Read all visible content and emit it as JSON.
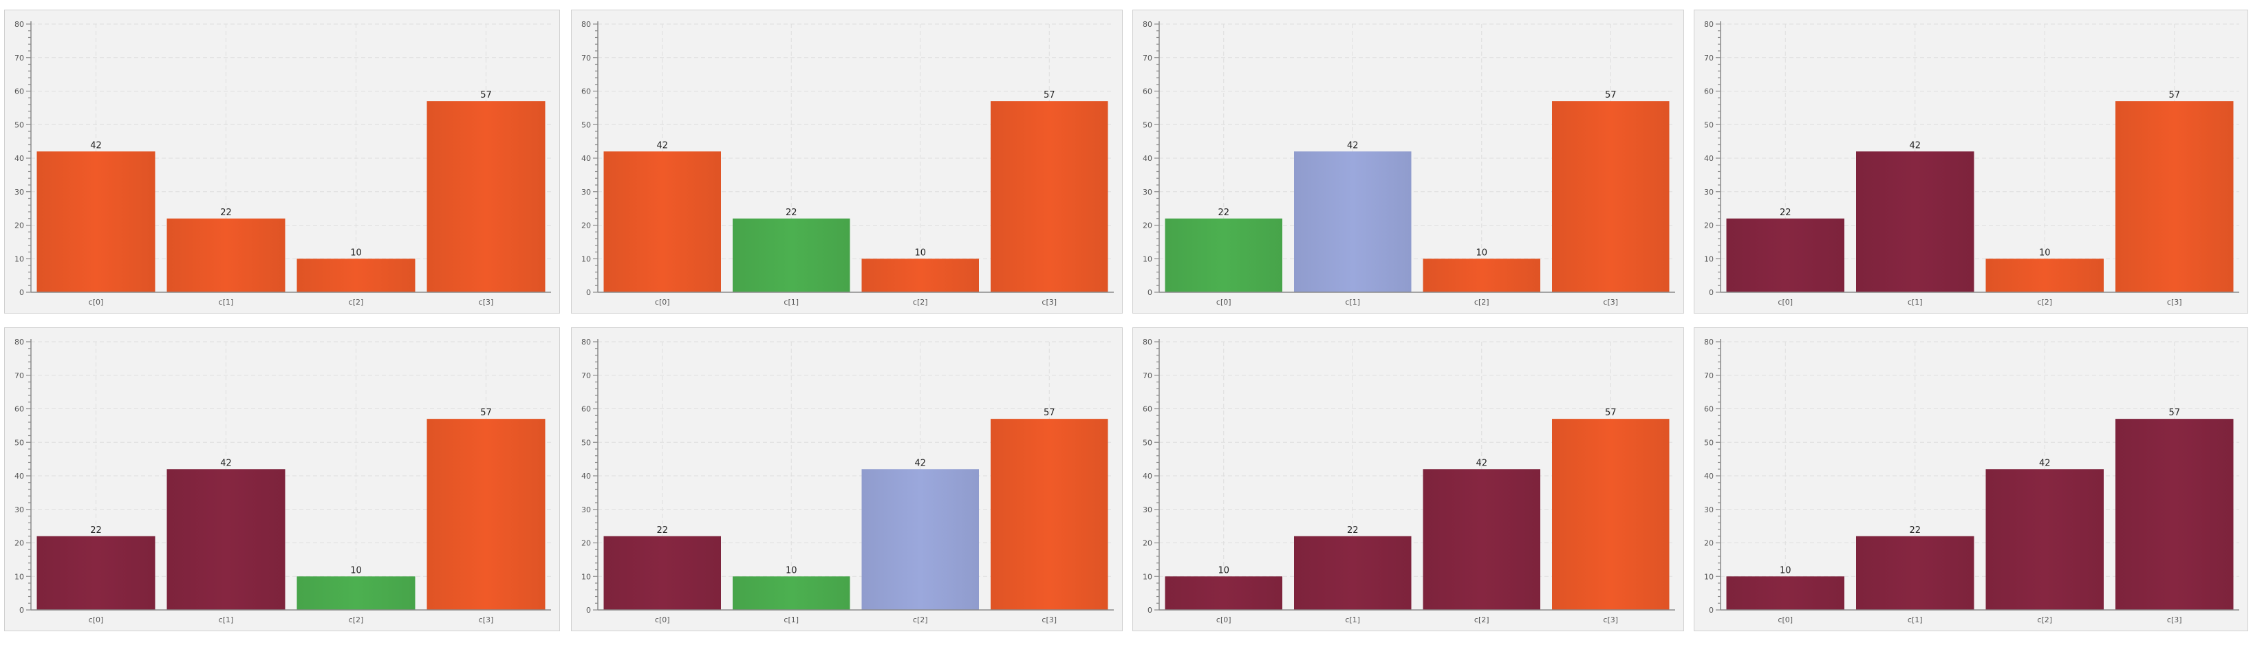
{
  "colors": {
    "orange": "#f05a28",
    "green": "#4cb050",
    "lavender": "#9ba8dc",
    "maroon": "#862641"
  },
  "chart_data": [
    {
      "type": "bar",
      "categories": [
        "c[0]",
        "c[1]",
        "c[2]",
        "c[3]"
      ],
      "values": [
        42,
        22,
        10,
        57
      ],
      "bar_colors": [
        "orange",
        "orange",
        "orange",
        "orange"
      ],
      "ylim": [
        0,
        80
      ],
      "yticks": [
        0,
        10,
        20,
        30,
        40,
        50,
        60,
        70,
        80
      ],
      "grid": true,
      "legend": "none",
      "title": "",
      "xlabel": "",
      "ylabel": ""
    },
    {
      "type": "bar",
      "categories": [
        "c[0]",
        "c[1]",
        "c[2]",
        "c[3]"
      ],
      "values": [
        42,
        22,
        10,
        57
      ],
      "bar_colors": [
        "orange",
        "green",
        "orange",
        "orange"
      ],
      "ylim": [
        0,
        80
      ],
      "yticks": [
        0,
        10,
        20,
        30,
        40,
        50,
        60,
        70,
        80
      ],
      "grid": true,
      "legend": "none",
      "title": "",
      "xlabel": "",
      "ylabel": ""
    },
    {
      "type": "bar",
      "categories": [
        "c[0]",
        "c[1]",
        "c[2]",
        "c[3]"
      ],
      "values": [
        22,
        42,
        10,
        57
      ],
      "bar_colors": [
        "green",
        "lavender",
        "orange",
        "orange"
      ],
      "ylim": [
        0,
        80
      ],
      "yticks": [
        0,
        10,
        20,
        30,
        40,
        50,
        60,
        70,
        80
      ],
      "grid": true,
      "legend": "none",
      "title": "",
      "xlabel": "",
      "ylabel": ""
    },
    {
      "type": "bar",
      "categories": [
        "c[0]",
        "c[1]",
        "c[2]",
        "c[3]"
      ],
      "values": [
        22,
        42,
        10,
        57
      ],
      "bar_colors": [
        "maroon",
        "maroon",
        "orange",
        "orange"
      ],
      "ylim": [
        0,
        80
      ],
      "yticks": [
        0,
        10,
        20,
        30,
        40,
        50,
        60,
        70,
        80
      ],
      "grid": true,
      "legend": "none",
      "title": "",
      "xlabel": "",
      "ylabel": ""
    },
    {
      "type": "bar",
      "categories": [
        "c[0]",
        "c[1]",
        "c[2]",
        "c[3]"
      ],
      "values": [
        22,
        42,
        10,
        57
      ],
      "bar_colors": [
        "maroon",
        "maroon",
        "green",
        "orange"
      ],
      "ylim": [
        0,
        80
      ],
      "yticks": [
        0,
        10,
        20,
        30,
        40,
        50,
        60,
        70,
        80
      ],
      "grid": true,
      "legend": "none",
      "title": "",
      "xlabel": "",
      "ylabel": ""
    },
    {
      "type": "bar",
      "categories": [
        "c[0]",
        "c[1]",
        "c[2]",
        "c[3]"
      ],
      "values": [
        22,
        10,
        42,
        57
      ],
      "bar_colors": [
        "maroon",
        "green",
        "lavender",
        "orange"
      ],
      "ylim": [
        0,
        80
      ],
      "yticks": [
        0,
        10,
        20,
        30,
        40,
        50,
        60,
        70,
        80
      ],
      "grid": true,
      "legend": "none",
      "title": "",
      "xlabel": "",
      "ylabel": ""
    },
    {
      "type": "bar",
      "categories": [
        "c[0]",
        "c[1]",
        "c[2]",
        "c[3]"
      ],
      "values": [
        10,
        22,
        42,
        57
      ],
      "bar_colors": [
        "maroon",
        "maroon",
        "maroon",
        "orange"
      ],
      "ylim": [
        0,
        80
      ],
      "yticks": [
        0,
        10,
        20,
        30,
        40,
        50,
        60,
        70,
        80
      ],
      "grid": true,
      "legend": "none",
      "title": "",
      "xlabel": "",
      "ylabel": ""
    },
    {
      "type": "bar",
      "categories": [
        "c[0]",
        "c[1]",
        "c[2]",
        "c[3]"
      ],
      "values": [
        10,
        22,
        42,
        57
      ],
      "bar_colors": [
        "maroon",
        "maroon",
        "maroon",
        "maroon"
      ],
      "ylim": [
        0,
        80
      ],
      "yticks": [
        0,
        10,
        20,
        30,
        40,
        50,
        60,
        70,
        80
      ],
      "grid": true,
      "legend": "none",
      "title": "",
      "xlabel": "",
      "ylabel": ""
    }
  ]
}
